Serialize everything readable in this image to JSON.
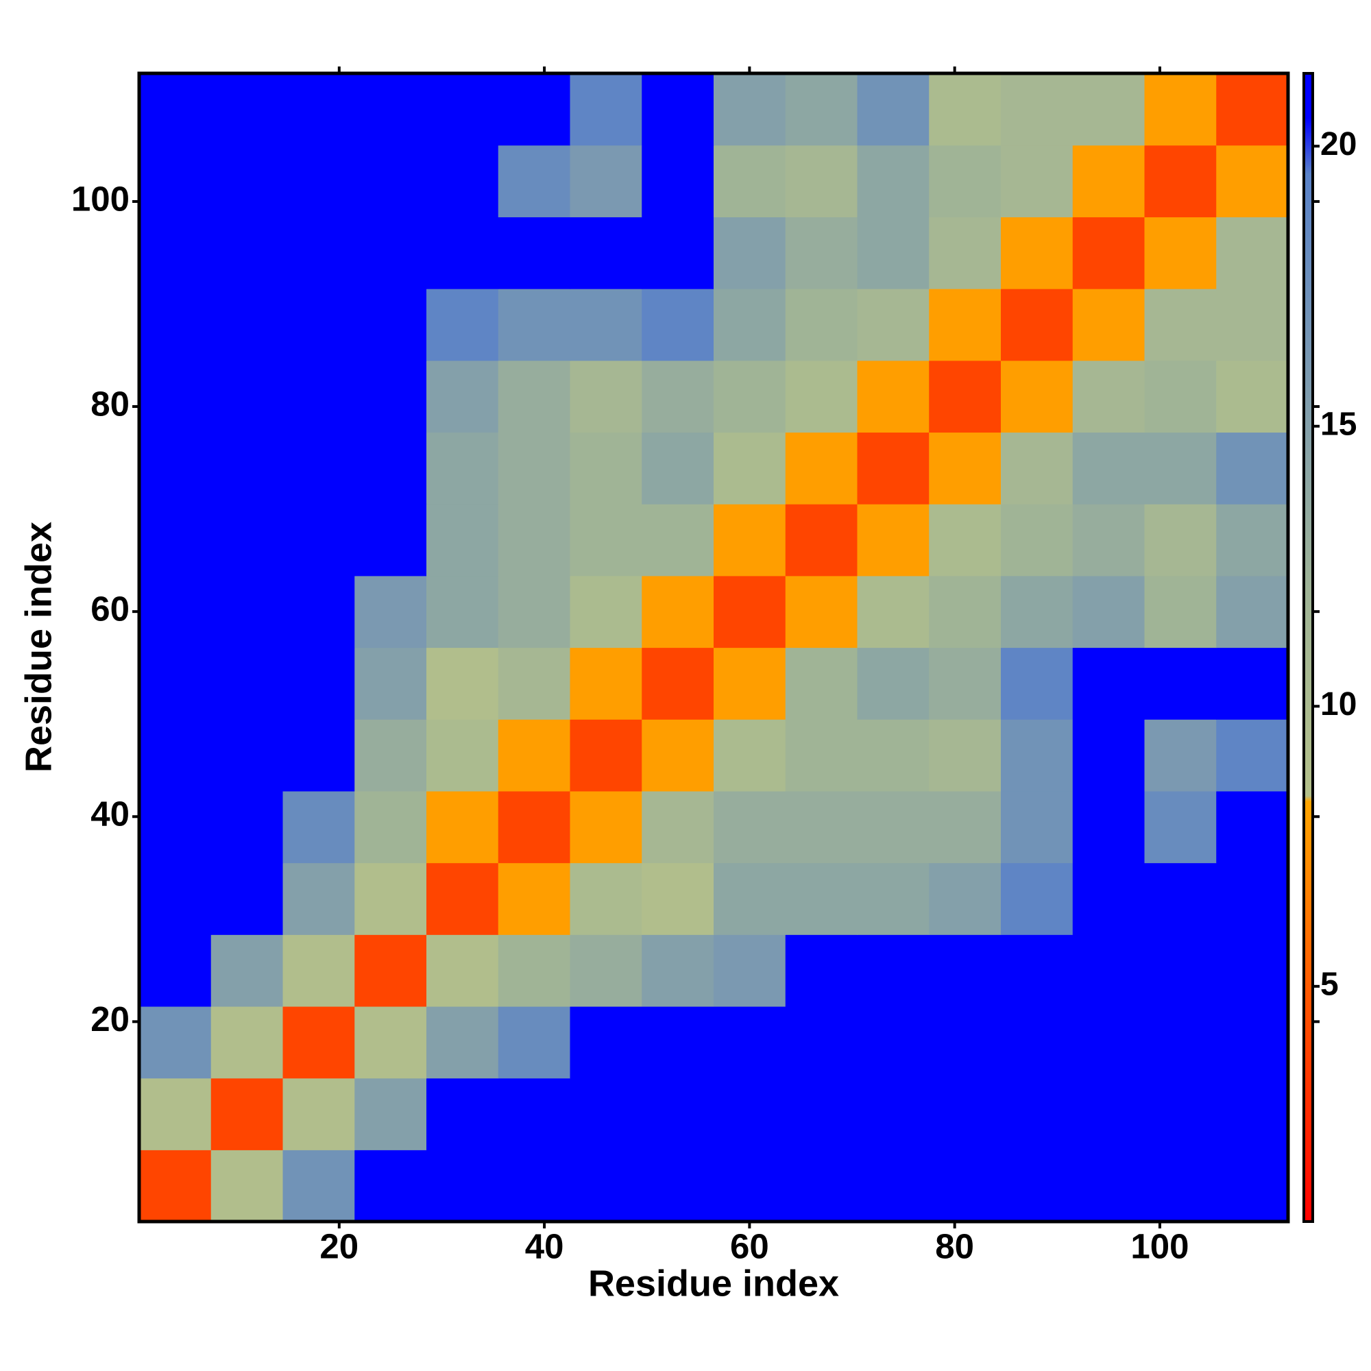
{
  "chart_data": {
    "type": "heatmap",
    "xlabel": "Residue index",
    "ylabel": "Residue index",
    "xbins": [
      0.5,
      7.5,
      14.5,
      21.5,
      28.5,
      35.5,
      42.5,
      49.5,
      56.5,
      63.5,
      70.5,
      77.5,
      84.5,
      91.5,
      98.5,
      105.5,
      112.5
    ],
    "ybins": [
      0.5,
      7.5,
      14.5,
      21.5,
      28.5,
      35.5,
      42.5,
      49.5,
      56.5,
      63.5,
      70.5,
      77.5,
      84.5,
      91.5,
      98.5,
      105.5,
      112.5
    ],
    "z": [
      [
        4,
        9,
        17,
        21,
        21,
        21,
        21,
        21,
        21,
        21,
        21,
        21,
        21,
        21,
        21,
        21
      ],
      [
        9,
        4,
        9,
        15,
        21,
        21,
        21,
        21,
        21,
        21,
        21,
        21,
        21,
        21,
        21,
        21
      ],
      [
        17,
        9,
        4,
        9,
        15,
        18,
        21,
        21,
        21,
        21,
        21,
        21,
        21,
        21,
        21,
        21
      ],
      [
        21,
        15,
        9,
        4,
        9,
        12,
        13,
        15,
        16,
        21,
        21,
        21,
        21,
        21,
        21,
        21
      ],
      [
        21,
        21,
        15,
        9,
        4,
        8,
        10,
        9,
        14,
        14,
        14,
        15,
        19,
        21,
        21,
        21
      ],
      [
        21,
        21,
        18,
        12,
        8,
        4,
        8,
        11,
        13,
        13,
        13,
        13,
        17,
        21,
        18,
        21
      ],
      [
        21,
        21,
        21,
        13,
        10,
        8,
        4,
        8,
        10,
        12,
        12,
        11,
        17,
        21,
        16,
        19
      ],
      [
        21,
        21,
        21,
        15,
        9,
        11,
        8,
        4,
        8,
        12,
        14,
        13,
        19,
        21,
        21,
        21
      ],
      [
        21,
        21,
        21,
        16,
        14,
        13,
        10,
        8,
        4,
        8,
        10,
        12,
        14,
        15,
        12,
        15
      ],
      [
        21,
        21,
        21,
        21,
        14,
        13,
        12,
        12,
        8,
        4,
        8,
        10,
        12,
        13,
        11,
        14
      ],
      [
        21,
        21,
        21,
        21,
        14,
        13,
        12,
        14,
        10,
        8,
        4,
        8,
        11,
        14,
        14,
        17
      ],
      [
        21,
        21,
        21,
        21,
        15,
        13,
        11,
        13,
        12,
        10,
        8,
        4,
        8,
        11,
        12,
        10
      ],
      [
        21,
        21,
        21,
        21,
        19,
        17,
        17,
        19,
        14,
        12,
        11,
        8,
        4,
        8,
        11,
        11
      ],
      [
        21,
        21,
        21,
        21,
        21,
        21,
        21,
        21,
        15,
        13,
        14,
        11,
        8,
        4,
        8,
        11
      ],
      [
        21,
        21,
        21,
        21,
        21,
        18,
        16,
        21,
        12,
        11,
        14,
        12,
        11,
        8,
        4,
        8
      ],
      [
        21,
        21,
        21,
        21,
        21,
        21,
        19,
        21,
        15,
        14,
        17,
        10,
        11,
        11,
        8,
        4
      ]
    ],
    "xlim": [
      0.5,
      112.5
    ],
    "ylim": [
      0.5,
      112.5
    ],
    "xticks": [
      20,
      40,
      60,
      80,
      100
    ],
    "yticks": [
      20,
      40,
      60,
      80,
      100
    ],
    "colorbar": {
      "lim": [
        0.8,
        21.3
      ],
      "ticks": [
        5,
        10,
        15,
        20
      ],
      "stops": [
        {
          "value": 0.8,
          "color": "#ff0000"
        },
        {
          "value": 5,
          "color": "#ff5a00"
        },
        {
          "value": 8.3,
          "color": "#ffa500"
        },
        {
          "value": 8.4,
          "color": "#b4c08a"
        },
        {
          "value": 12,
          "color": "#a0b496"
        },
        {
          "value": 19.5,
          "color": "#5a82c8"
        },
        {
          "value": 20.5,
          "color": "#0000ff"
        },
        {
          "value": 21.3,
          "color": "#0000ff"
        }
      ]
    }
  }
}
